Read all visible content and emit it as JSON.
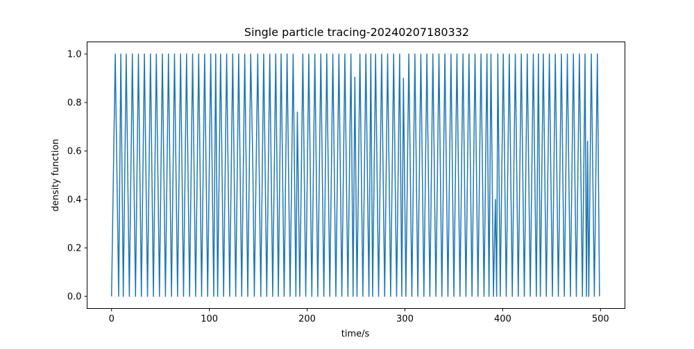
{
  "chart_data": {
    "type": "line",
    "title": "Single particle tracing-20240207180332",
    "xlabel": "time/s",
    "ylabel": "density function",
    "xlim": [
      -25,
      525
    ],
    "ylim": [
      -0.05,
      1.05
    ],
    "xticks": [
      0,
      100,
      200,
      300,
      400,
      500
    ],
    "yticks": [
      0.0,
      0.2,
      0.4,
      0.6,
      0.8,
      1.0
    ],
    "xtick_labels": [
      "0",
      "100",
      "200",
      "300",
      "400",
      "500"
    ],
    "ytick_labels": [
      "0.0",
      "0.2",
      "0.4",
      "0.6",
      "0.8",
      "1.0"
    ],
    "grid": false,
    "series": [
      {
        "color": "#1f77b4",
        "x": [
          0,
          3.8,
          7.3,
          9.5,
          12.0,
          15.0,
          18.2,
          21.3,
          24.5,
          27.5,
          30.5,
          33.6,
          36.8,
          39.8,
          42.8,
          45.8,
          49.0,
          52.0,
          55.1,
          58.2,
          61.3,
          64.4,
          67.5,
          70.6,
          73.6,
          76.7,
          79.8,
          82.9,
          86.0,
          89.1,
          92.1,
          95.2,
          98.3,
          101.4,
          104.5,
          106.5,
          108.5,
          111.5,
          114.6,
          117.7,
          120.8,
          123.9,
          127.0,
          130.0,
          133.1,
          136.2,
          139.3,
          142.3,
          144.5,
          146.0,
          149.5,
          152.6,
          155.6,
          158.7,
          161.8,
          164.8,
          167.9,
          170.6,
          173.4,
          176.5,
          179.5,
          182.6,
          185.7,
          188.5,
          190.0,
          192.5,
          195.6,
          198.6,
          201.7,
          204.8,
          207.9,
          210.9,
          214.0,
          217.1,
          220.1,
          223.2,
          226.3,
          229.4,
          232.5,
          235.5,
          238.6,
          241.7,
          244.8,
          247.0,
          248.8,
          251.0,
          254.0,
          257.0,
          260.1,
          263.2,
          265.1,
          267.0,
          270.0,
          273.1,
          276.2,
          279.3,
          282.3,
          285.4,
          288.5,
          291.5,
          294.6,
          296.8,
          298.5,
          301.0,
          304.0,
          307.1,
          310.2,
          313.2,
          316.3,
          319.4,
          322.5,
          325.5,
          328.6,
          331.7,
          334.8,
          337.8,
          340.9,
          344.0,
          347.1,
          350.1,
          353.2,
          356.3,
          359.4,
          362.4,
          365.5,
          368.6,
          371.7,
          374.7,
          377.8,
          380.9,
          383.9,
          386.0,
          388.0,
          390.5,
          392.5,
          393.8,
          395.0,
          397.5,
          400.6,
          403.6,
          406.7,
          409.8,
          412.9,
          415.9,
          419.0,
          422.1,
          425.1,
          428.2,
          431.3,
          434.4,
          436.5,
          438.5,
          441.5,
          444.6,
          447.7,
          450.8,
          453.8,
          456.9,
          460.0,
          463.0,
          466.1,
          469.2,
          472.3,
          475.3,
          478.4,
          481.5,
          484.2,
          485.6,
          486.8,
          488.0,
          490.6,
          493.7,
          496.8,
          499.0
        ],
        "y": [
          0,
          1,
          0,
          1,
          0,
          1,
          0,
          1,
          0,
          1,
          0,
          1,
          0,
          1,
          0,
          1,
          0,
          1,
          0,
          1,
          0,
          1,
          0,
          1,
          0,
          1,
          0,
          1,
          0,
          1,
          0,
          1,
          0,
          1,
          0,
          1,
          0,
          1,
          0,
          1,
          0,
          1,
          0,
          1,
          0,
          1,
          0,
          1,
          0.535,
          0,
          1,
          0,
          1,
          0,
          1,
          0,
          1,
          0,
          1,
          0,
          1,
          0,
          1,
          0,
          0.76,
          0,
          1,
          0,
          1,
          0,
          1,
          0,
          1,
          0,
          1,
          0,
          1,
          0,
          1,
          0,
          1,
          0,
          1,
          0,
          0.905,
          0,
          1,
          0,
          1,
          0,
          1,
          0,
          1,
          0,
          1,
          0,
          1,
          0,
          1,
          0,
          1,
          0,
          0.9,
          0,
          1,
          0,
          1,
          0,
          1,
          0,
          1,
          0,
          1,
          0,
          1,
          0,
          1,
          0,
          1,
          0,
          1,
          0,
          1,
          0,
          1,
          0,
          1,
          0,
          1,
          0,
          1,
          0,
          1,
          0,
          0.4,
          0,
          1,
          0,
          1,
          0,
          1,
          0,
          1,
          0,
          1,
          0,
          1,
          0,
          1,
          0,
          1,
          0,
          1,
          0,
          1,
          0,
          1,
          0,
          1,
          0,
          1,
          0,
          1,
          0,
          1,
          0,
          1,
          0,
          0.64,
          0,
          1,
          0,
          1,
          0
        ]
      }
    ]
  }
}
